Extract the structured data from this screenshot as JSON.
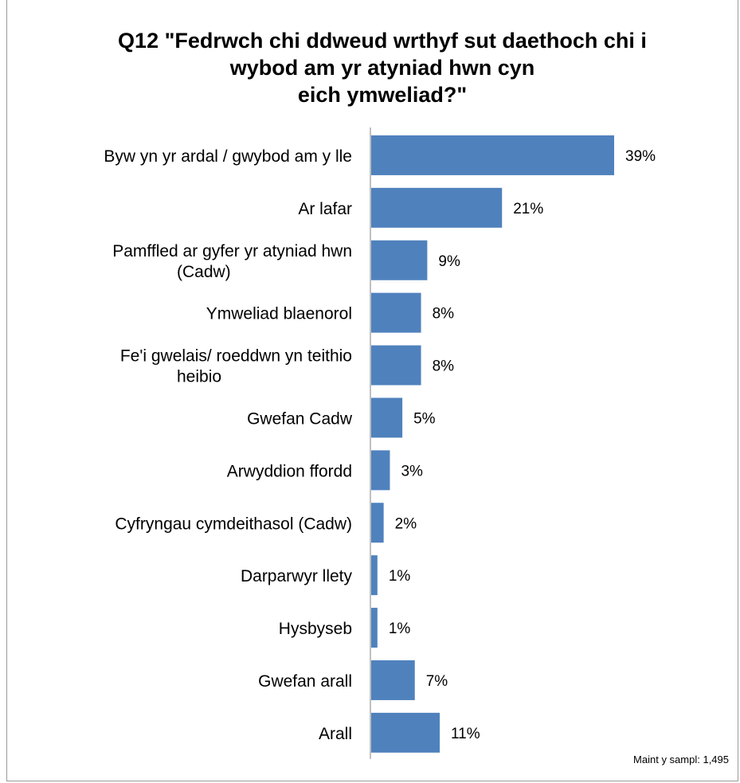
{
  "chart_data": {
    "type": "bar",
    "orientation": "horizontal",
    "title_lines": [
      "Q12 \"Fedrwch chi ddweud wrthyf sut daethoch chi i",
      "wybod am yr atyniad hwn cyn",
      "eich ymweliad?\""
    ],
    "categories": [
      [
        "Byw yn yr ardal / gwybod am y lle"
      ],
      [
        "Ar lafar"
      ],
      [
        "Pamffled ar gyfer yr atyniad hwn",
        "(Cadw)"
      ],
      [
        "Ymweliad blaenorol"
      ],
      [
        "Fe'i gwelais/ roeddwn yn teithio",
        "heibio"
      ],
      [
        "Gwefan Cadw"
      ],
      [
        "Arwyddion ffordd"
      ],
      [
        "Cyfryngau cymdeithasol (Cadw)"
      ],
      [
        "Darparwyr llety"
      ],
      [
        "Hysbyseb"
      ],
      [
        "Gwefan arall"
      ],
      [
        "Arall"
      ]
    ],
    "values": [
      39,
      21,
      9,
      8,
      8,
      5,
      3,
      2,
      1,
      1,
      7,
      11
    ],
    "value_suffix": "%",
    "xlim": [
      0,
      40
    ],
    "grid": false,
    "legend": "none",
    "bar_color": "#4f81bd"
  },
  "footnote": "Maint y sampl: 1,495"
}
